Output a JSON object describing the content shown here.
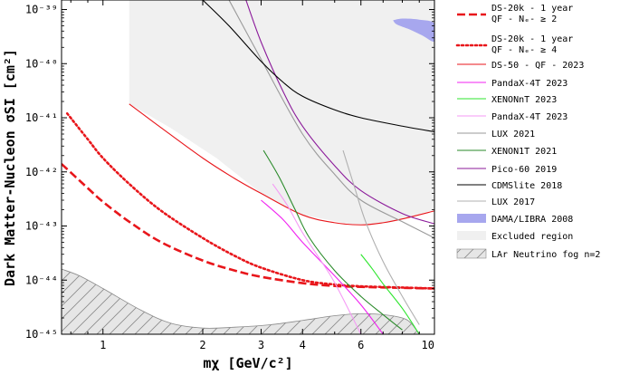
{
  "chart_data": {
    "type": "line",
    "xlabel": "mχ [GeV/c²]",
    "ylabel": "Dark Matter-Nucleon σSI [cm²]",
    "xscale": "log",
    "yscale": "log",
    "xlim": [
      0.75,
      10
    ],
    "ylim": [
      1e-45,
      1.5e-39
    ],
    "x_ticks": [
      {
        "value": 1,
        "label": "1"
      },
      {
        "value": 2,
        "label": "2"
      },
      {
        "value": 3,
        "label": "3"
      },
      {
        "value": 4,
        "label": "4"
      },
      {
        "value": 6,
        "label": "6"
      },
      {
        "value": 10,
        "label": "10"
      }
    ],
    "y_ticks": [
      {
        "value": 1e-39,
        "label": "10⁻³⁹"
      },
      {
        "value": 1e-40,
        "label": "10⁻⁴⁰"
      },
      {
        "value": 1e-41,
        "label": "10⁻⁴¹"
      },
      {
        "value": 1e-42,
        "label": "10⁻⁴²"
      },
      {
        "value": 1e-43,
        "label": "10⁻⁴³"
      },
      {
        "value": 1e-44,
        "label": "10⁻⁴⁴"
      },
      {
        "value": 1e-45,
        "label": "10⁻⁴⁵"
      }
    ],
    "legend_position": "outside-right",
    "excluded_region": {
      "name": "Excluded region",
      "color": "#f0f0f0",
      "points": [
        [
          1.2,
          1.5e-39
        ],
        [
          1.2,
          1.8e-41
        ],
        [
          1.6,
          6.5e-42
        ],
        [
          2.2,
          1.8e-42
        ],
        [
          3,
          4e-43
        ],
        [
          4,
          1.6e-43
        ],
        [
          5.5,
          1.1e-43
        ],
        [
          6.5,
          1.05e-43
        ],
        [
          7.5,
          1.2e-43
        ],
        [
          10,
          2e-43
        ],
        [
          10,
          1.5e-39
        ]
      ]
    },
    "neutrino_fog": {
      "name": "LAr Neutrino fog n=2",
      "color": "#e6e6e6",
      "points": [
        [
          0.75,
          1.6e-44
        ],
        [
          0.85,
          1.2e-44
        ],
        [
          1.0,
          7e-45
        ],
        [
          1.3,
          2.8e-45
        ],
        [
          1.6,
          1.6e-45
        ],
        [
          2.0,
          1.3e-45
        ],
        [
          2.5,
          1.35e-45
        ],
        [
          3.2,
          1.5e-45
        ],
        [
          4.0,
          1.8e-45
        ],
        [
          5.0,
          2.2e-45
        ],
        [
          6.0,
          2.4e-45
        ],
        [
          7.0,
          2.3e-45
        ],
        [
          8.0,
          2e-45
        ],
        [
          8.5,
          1.6e-45
        ],
        [
          9.0,
          1e-45
        ]
      ]
    },
    "dama_region": {
      "name": "DAMA/LIBRA 2008",
      "color": "#a7a7ee",
      "center": [
        8.6,
        5e-40
      ],
      "points": [
        [
          7.5,
          6.3e-40
        ],
        [
          8.0,
          6.8e-40
        ],
        [
          9.0,
          6.5e-40
        ],
        [
          10,
          5.5e-40
        ],
        [
          10,
          2.6e-40
        ],
        [
          9.2,
          3.3e-40
        ],
        [
          8.4,
          4.3e-40
        ],
        [
          7.7,
          5.3e-40
        ],
        [
          7.5,
          6.3e-40
        ]
      ]
    },
    "series": [
      {
        "name": "DS-20k - 1 year\nQF - Nₑ- ≥ 2",
        "color": "#e8161b",
        "dash": "dashed",
        "width": 2.6,
        "x": [
          0.75,
          0.9,
          1.0,
          1.2,
          1.5,
          2.0,
          2.5,
          3.0,
          4.0,
          5.0,
          6.0,
          8.0,
          10.0
        ],
        "y": [
          1.4e-42,
          5e-43,
          2.8e-43,
          1.2e-43,
          5e-44,
          2.3e-44,
          1.5e-44,
          1.15e-44,
          8.8e-45,
          7.8e-45,
          7.5e-45,
          7.2e-45,
          7e-45
        ]
      },
      {
        "name": "DS-20k - 1 year\nQF - Nₑ- ≥ 4",
        "color": "#e8161b",
        "dash": "dotted",
        "width": 2.6,
        "x": [
          0.78,
          0.9,
          1.0,
          1.2,
          1.5,
          2.0,
          2.5,
          3.0,
          4.0,
          5.0,
          6.0,
          8.0,
          10.0
        ],
        "y": [
          1.2e-41,
          4e-42,
          1.8e-42,
          6e-43,
          1.9e-43,
          6e-44,
          2.8e-44,
          1.7e-44,
          1e-44,
          8.3e-45,
          7.7e-45,
          7.3e-45,
          7e-45
        ]
      },
      {
        "name": "DS-50 - QF - 2023",
        "color": "#e8161b",
        "dash": "solid",
        "width": 1.1,
        "x": [
          1.2,
          1.5,
          2.0,
          2.5,
          3.0,
          4.0,
          5.0,
          6.0,
          7.0,
          8.0,
          10.0
        ],
        "y": [
          1.8e-41,
          6.5e-42,
          1.8e-42,
          7.5e-43,
          4e-43,
          1.6e-43,
          1.15e-43,
          1.05e-43,
          1.15e-43,
          1.35e-43,
          1.9e-43
        ]
      },
      {
        "name": "PandaX-4T 2023",
        "color": "#f021f0",
        "dash": "solid",
        "width": 1.1,
        "x": [
          3.0,
          3.5,
          4.0,
          5.0,
          6.0,
          7.0
        ],
        "y": [
          3e-43,
          1.3e-43,
          5e-44,
          1.2e-44,
          3.5e-45,
          1e-45
        ]
      },
      {
        "name": "XENONnT 2023",
        "color": "#2ee62e",
        "dash": "solid",
        "width": 1.1,
        "x": [
          6.0,
          6.5,
          7.0,
          8.0,
          9.0
        ],
        "y": [
          3e-44,
          1.6e-44,
          8.5e-45,
          3e-45,
          1e-45
        ]
      },
      {
        "name": "PandaX-4T 2023",
        "color": "#f59af5",
        "dash": "solid",
        "width": 1.1,
        "x": [
          3.25,
          3.6,
          4.0,
          4.5,
          5.0,
          6.0
        ],
        "y": [
          6e-43,
          2.4e-43,
          7.5e-44,
          2.5e-44,
          9e-45,
          1e-45
        ]
      },
      {
        "name": "LUX 2021",
        "color": "#9a9a9a",
        "dash": "solid",
        "width": 1.1,
        "x": [
          2.4,
          3.0,
          4.0,
          5.0,
          6.0,
          8.0,
          10.0
        ],
        "y": [
          1.5e-39,
          1.2e-40,
          5e-42,
          9e-43,
          3e-43,
          1.2e-43,
          6e-44
        ]
      },
      {
        "name": "XENON1T 2021",
        "color": "#2a8a2a",
        "dash": "solid",
        "width": 1.1,
        "x": [
          3.05,
          3.4,
          3.8,
          4.2,
          5.0,
          6.0,
          7.0,
          8.0
        ],
        "y": [
          2.5e-42,
          8e-43,
          2e-43,
          6e-44,
          1.5e-44,
          5e-45,
          2.3e-45,
          1.2e-45
        ]
      },
      {
        "name": "Pico-60 2019",
        "color": "#8b1a9a",
        "dash": "solid",
        "width": 1.1,
        "x": [
          2.7,
          3.0,
          3.5,
          4.0,
          5.0,
          6.0,
          8.0,
          10.0
        ],
        "y": [
          1.5e-39,
          2.5e-40,
          3e-41,
          7e-42,
          1.3e-42,
          4.5e-43,
          1.7e-43,
          1.1e-43
        ]
      },
      {
        "name": "CDMSlite 2018",
        "color": "#000000",
        "dash": "solid",
        "width": 1.1,
        "x": [
          2.0,
          2.4,
          3.0,
          3.5,
          4.0,
          5.0,
          6.0,
          8.0,
          10.0
        ],
        "y": [
          1.5e-39,
          5e-40,
          1.1e-40,
          4.5e-41,
          2.5e-41,
          1.4e-41,
          1e-41,
          7e-42,
          5.5e-42
        ]
      },
      {
        "name": "LUX 2017",
        "color": "#b0b0b0",
        "dash": "solid",
        "width": 1.1,
        "x": [
          5.3,
          5.7,
          6.2,
          7.0,
          8.0,
          9.0
        ],
        "y": [
          2.5e-42,
          6e-43,
          1.2e-43,
          2.2e-44,
          5e-45,
          1.5e-45
        ]
      }
    ],
    "legend": [
      {
        "kind": "line",
        "ref": 0,
        "label": "DS-20k - 1 year\nQF - Nₑ- ≥ 2"
      },
      {
        "kind": "line",
        "ref": 1,
        "label": "DS-20k - 1 year\nQF - Nₑ- ≥ 4"
      },
      {
        "kind": "line",
        "ref": 2,
        "label": "DS-50 - QF - 2023"
      },
      {
        "kind": "line",
        "ref": 3,
        "label": "PandaX-4T 2023"
      },
      {
        "kind": "line",
        "ref": 4,
        "label": "XENONnT 2023"
      },
      {
        "kind": "line",
        "ref": 5,
        "label": "PandaX-4T 2023"
      },
      {
        "kind": "line",
        "ref": 6,
        "label": "LUX 2021"
      },
      {
        "kind": "line",
        "ref": 7,
        "label": "XENON1T 2021"
      },
      {
        "kind": "line",
        "ref": 8,
        "label": "Pico-60 2019"
      },
      {
        "kind": "line",
        "ref": 9,
        "label": "CDMSlite 2018"
      },
      {
        "kind": "line",
        "ref": 10,
        "label": "LUX 2017"
      },
      {
        "kind": "patch",
        "color": "#a7a7ee",
        "label": "DAMA/LIBRA 2008"
      },
      {
        "kind": "patch",
        "color": "#f0f0f0",
        "label": "Excluded region"
      },
      {
        "kind": "hatch",
        "color": "#e6e6e6",
        "label": "LAr Neutrino fog n=2"
      }
    ]
  }
}
